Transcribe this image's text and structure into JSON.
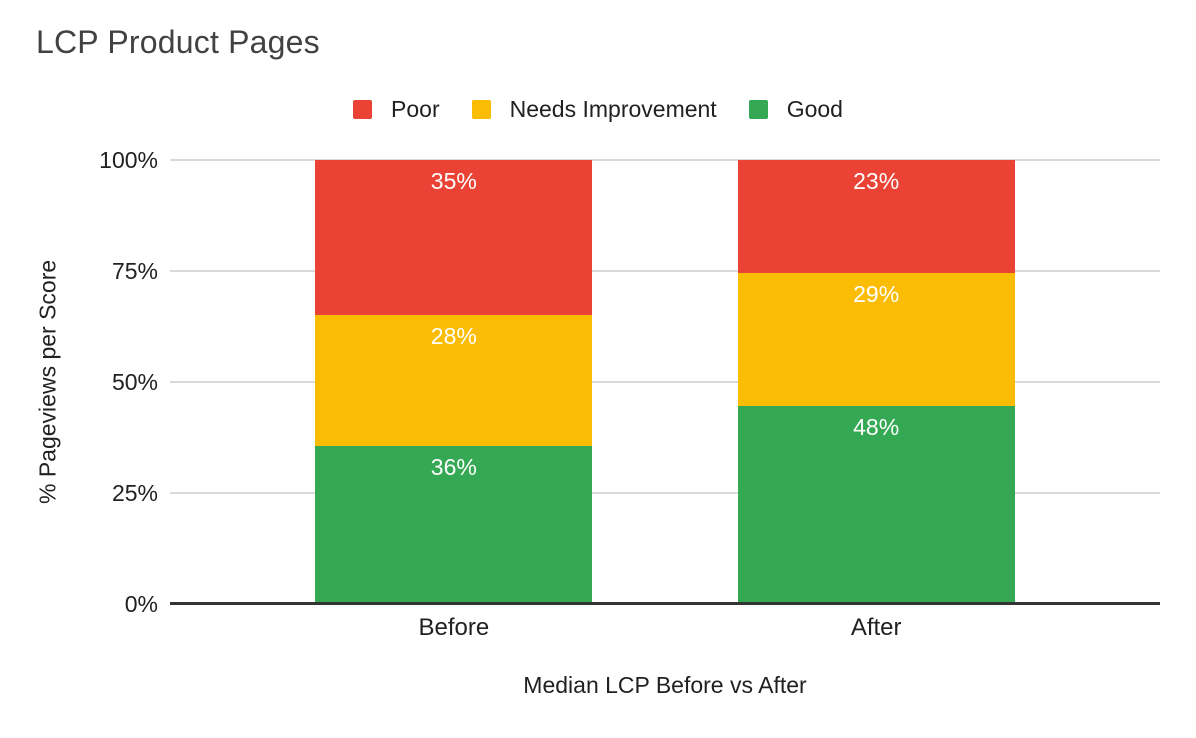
{
  "chart_data": {
    "type": "bar",
    "stacked": true,
    "title": "LCP Product Pages",
    "categories": [
      "Before",
      "After"
    ],
    "series": [
      {
        "name": "Poor",
        "color": "#ea4335",
        "values": [
          35,
          23
        ]
      },
      {
        "name": "Needs Improvement",
        "color": "#fbbc04",
        "values": [
          28,
          29
        ]
      },
      {
        "name": "Good",
        "color": "#34a853",
        "values": [
          36,
          48
        ]
      }
    ],
    "xlabel": "Median LCP Before vs After",
    "ylabel": "% Pageviews per Score",
    "ylim": [
      0,
      100
    ],
    "y_ticks": [
      100,
      75,
      50,
      25,
      0
    ],
    "y_tick_suffix": "%",
    "value_suffix": "%",
    "legend_position": "top",
    "grid": true,
    "colors": {
      "gridline": "#d9d9d9",
      "axis_baseline": "#333333",
      "title_text": "#424242",
      "label_text": "#212121",
      "data_label_text": "#ffffff"
    }
  }
}
